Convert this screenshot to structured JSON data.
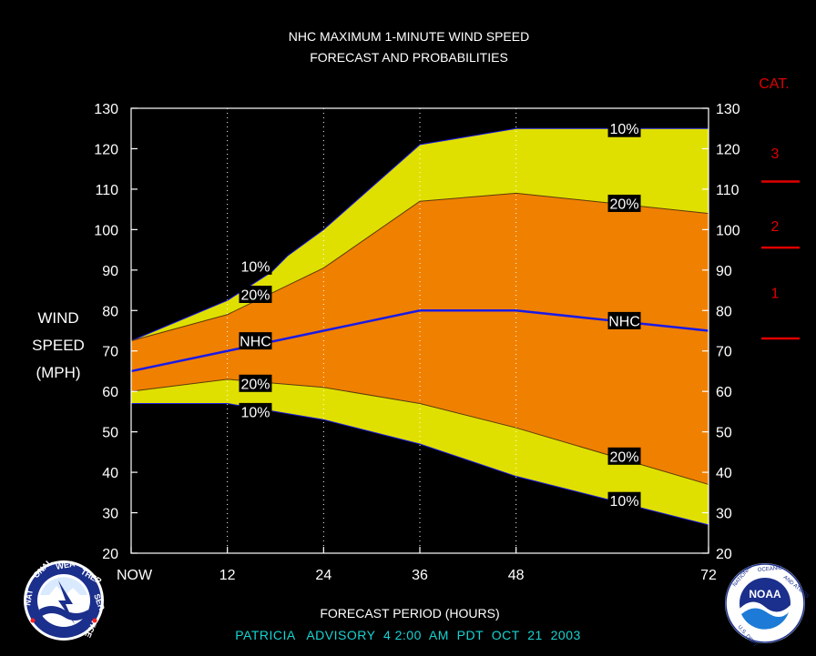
{
  "title_line1": "NHC MAXIMUM 1-MINUTE WIND SPEED",
  "title_line2": "FORECAST AND PROBABILITIES",
  "ylabel_lines": [
    "WIND",
    "SPEED",
    "(MPH)"
  ],
  "xlabel": "FORECAST PERIOD (HOURS)",
  "advisory": "PATRICIA   ADVISORY  4 2:00  AM  PDT  OCT  21  2003",
  "category": {
    "header": "CAT.",
    "labels": [
      "3",
      "2",
      "1"
    ],
    "thresholds_mph": [
      111,
      96,
      74
    ],
    "color": "#e00000"
  },
  "colors": {
    "outer_band": "#e0e000",
    "inner_band": "#f08000",
    "nhc_line": "#1a1ae6",
    "grid": "#ffffff",
    "label_box": "#000000"
  },
  "logos": {
    "left": "noaa-national-weather-service-logo",
    "right": "noaa-logo",
    "left_text": "NATIONAL WEATHER SERVICE",
    "right_text": "NOAA"
  },
  "chart_data": {
    "type": "area",
    "title": "NHC MAXIMUM 1-MINUTE WIND SPEED FORECAST AND PROBABILITIES",
    "xlabel": "FORECAST PERIOD (HOURS)",
    "ylabel": "WIND SPEED (MPH)",
    "x_ticks": [
      {
        "x": 0,
        "label": "NOW"
      },
      {
        "x": 12,
        "label": "12"
      },
      {
        "x": 24,
        "label": "24"
      },
      {
        "x": 36,
        "label": "36"
      },
      {
        "x": 48,
        "label": "48"
      },
      {
        "x": 72,
        "label": "72"
      }
    ],
    "xlim": [
      0,
      72
    ],
    "ylim": [
      20,
      130
    ],
    "y_ticks": [
      20,
      30,
      40,
      50,
      60,
      70,
      80,
      90,
      100,
      110,
      120,
      130
    ],
    "grid": "vertical dotted at 12, 24, 36, 48",
    "x": [
      0,
      12,
      24,
      36,
      48,
      72
    ],
    "series": [
      {
        "name": "10%",
        "values": [
          72.5,
          82.5,
          100,
          121,
          125,
          125
        ]
      },
      {
        "name": "20%",
        "values": [
          72.5,
          79,
          90.5,
          107,
          109,
          104
        ]
      },
      {
        "name": "NHC",
        "values": [
          65,
          70,
          75,
          80,
          80,
          75
        ]
      },
      {
        "name": "20%",
        "values": [
          60,
          63,
          61,
          57,
          51,
          37
        ]
      },
      {
        "name": "10%",
        "values": [
          57,
          57,
          53,
          47,
          39,
          27
        ]
      }
    ],
    "upper10_visible": [
      {
        "x": 0,
        "y": 72.5
      },
      {
        "x": 12,
        "y": 82.5
      },
      {
        "x": 17.5,
        "y": 89.5
      },
      {
        "x": 19.5,
        "y": 93.5
      },
      {
        "x": 24,
        "y": 100
      },
      {
        "x": 36,
        "y": 121
      },
      {
        "x": 48,
        "y": 125
      },
      {
        "x": 72,
        "y": 125
      }
    ],
    "annotations": [
      {
        "text": "10%",
        "x": 61.5,
        "y": 125
      },
      {
        "text": "20%",
        "x": 61.5,
        "y": 106.5
      },
      {
        "text": "NHC",
        "x": 61.5,
        "y": 77.5
      },
      {
        "text": "20%",
        "x": 61.5,
        "y": 44
      },
      {
        "text": "10%",
        "x": 61.5,
        "y": 33
      },
      {
        "text": "10%",
        "x": 15.5,
        "y": 91
      },
      {
        "text": "20%",
        "x": 15.5,
        "y": 84
      },
      {
        "text": "NHC",
        "x": 15.5,
        "y": 72.5
      },
      {
        "text": "20%",
        "x": 15.5,
        "y": 62
      },
      {
        "text": "10%",
        "x": 15.5,
        "y": 55
      }
    ]
  }
}
